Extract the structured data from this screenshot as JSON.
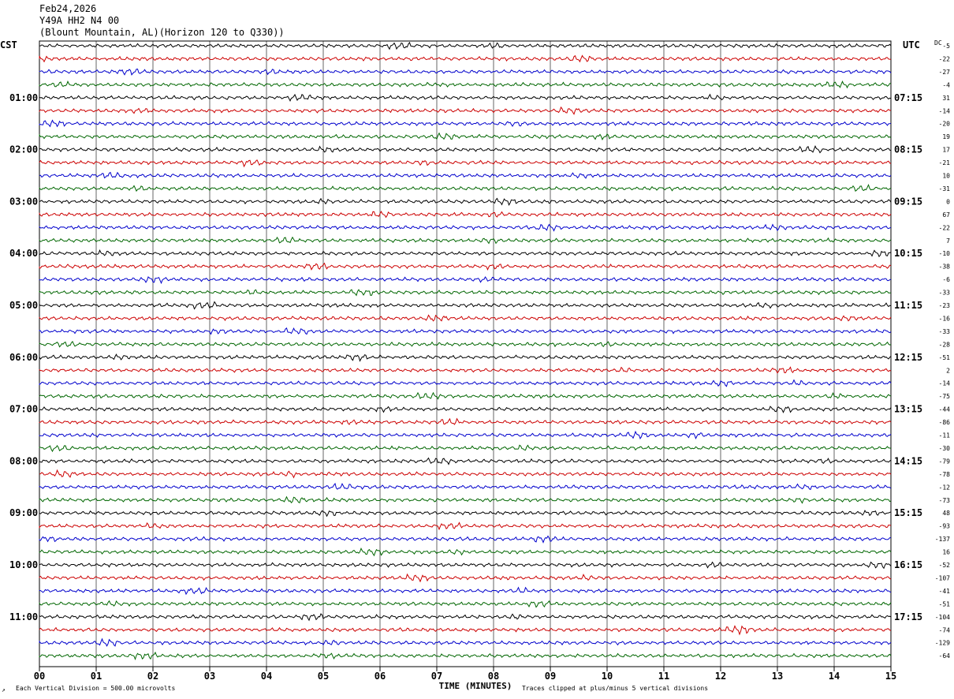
{
  "header": {
    "date": "Feb24,2026",
    "channel": "Y49A HH2 N4 00",
    "location": "(Blount Mountain, AL)(Horizon 120 to Q330))"
  },
  "chart_data": {
    "type": "line",
    "left_timezone": "CST",
    "right_timezone": "UTC",
    "dc_header": "DC",
    "hour_labels_left": [
      "01:00",
      "02:00",
      "03:00",
      "04:00",
      "05:00",
      "06:00",
      "07:00",
      "08:00",
      "09:00",
      "10:00",
      "11:00"
    ],
    "hour_labels_right": [
      "07:15",
      "08:15",
      "09:15",
      "10:15",
      "11:15",
      "12:15",
      "13:15",
      "14:15",
      "15:15",
      "16:15",
      "17:15"
    ],
    "dc_offsets": [
      -5,
      -22,
      -27,
      -4,
      31,
      -14,
      -20,
      19,
      17,
      -21,
      10,
      -31,
      0,
      67,
      -22,
      7,
      -10,
      -38,
      -6,
      -33,
      -23,
      -16,
      -33,
      -28,
      -51,
      2,
      -14,
      -75,
      -44,
      -86,
      -11,
      -30,
      -79,
      -78,
      -12,
      -73,
      48,
      -93,
      -137,
      16,
      -52,
      -107,
      -41,
      -51,
      -104,
      -74,
      -129,
      -64
    ],
    "trace_colors": [
      "#000000",
      "#cc0000",
      "#0000cc",
      "#006600"
    ],
    "x_ticks": [
      "00",
      "01",
      "02",
      "03",
      "04",
      "05",
      "06",
      "07",
      "08",
      "09",
      "10",
      "11",
      "12",
      "13",
      "14",
      "15"
    ],
    "xlim": [
      0,
      15
    ],
    "xlabel": "TIME (MINUTES)",
    "grid": true
  },
  "footer": {
    "scale_text": "Each Vertical Division =  500.00 microvolts",
    "clip_text": "Traces clipped at plus/minus 5 vertical divisions",
    "corner_mark": "↗"
  }
}
